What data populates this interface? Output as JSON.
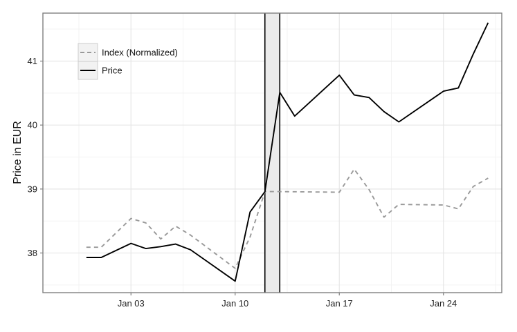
{
  "chart_data": {
    "type": "line",
    "title": "",
    "xlabel": "",
    "ylabel": "Price in EUR",
    "xlim": [
      "2015-12-29",
      "2016-01-27"
    ],
    "ylim": [
      37.38,
      41.75
    ],
    "x_ticks": [
      "2016-01-03",
      "2016-01-10",
      "2016-01-17",
      "2016-01-24"
    ],
    "x_tick_labels": [
      "Jan 03",
      "Jan 10",
      "Jan 17",
      "Jan 24"
    ],
    "y_ticks": [
      38,
      39,
      40,
      41
    ],
    "y_tick_labels": [
      "38",
      "39",
      "40",
      "41"
    ],
    "grid": true,
    "legend_position": "top-left",
    "highlight_band": {
      "from": "2016-01-12",
      "to": "2016-01-13"
    },
    "series": [
      {
        "name": "Index (Normalized)",
        "style": "dashed",
        "color": "#999999",
        "points": [
          [
            "2015-12-31",
            38.09
          ],
          [
            "2016-01-01",
            38.09
          ],
          [
            "2016-01-03",
            38.54
          ],
          [
            "2016-01-04",
            38.47
          ],
          [
            "2016-01-05",
            38.22
          ],
          [
            "2016-01-06",
            38.42
          ],
          [
            "2016-01-07",
            38.28
          ],
          [
            "2016-01-10",
            37.76
          ],
          [
            "2016-01-11",
            38.25
          ],
          [
            "2016-01-12",
            38.96
          ],
          [
            "2016-01-13",
            38.96
          ],
          [
            "2016-01-17",
            38.95
          ],
          [
            "2016-01-18",
            39.31
          ],
          [
            "2016-01-19",
            38.99
          ],
          [
            "2016-01-20",
            38.56
          ],
          [
            "2016-01-21",
            38.76
          ],
          [
            "2016-01-24",
            38.75
          ],
          [
            "2016-01-25",
            38.69
          ],
          [
            "2016-01-26",
            39.04
          ],
          [
            "2016-01-27",
            39.17
          ]
        ]
      },
      {
        "name": "Price",
        "style": "solid",
        "color": "#000000",
        "points": [
          [
            "2015-12-31",
            37.93
          ],
          [
            "2016-01-01",
            37.93
          ],
          [
            "2016-01-03",
            38.15
          ],
          [
            "2016-01-04",
            38.07
          ],
          [
            "2016-01-05",
            38.1
          ],
          [
            "2016-01-06",
            38.14
          ],
          [
            "2016-01-07",
            38.05
          ],
          [
            "2016-01-10",
            37.56
          ],
          [
            "2016-01-11",
            38.64
          ],
          [
            "2016-01-12",
            38.96
          ],
          [
            "2016-01-13",
            40.51
          ],
          [
            "2016-01-14",
            40.14
          ],
          [
            "2016-01-17",
            40.78
          ],
          [
            "2016-01-18",
            40.47
          ],
          [
            "2016-01-19",
            40.43
          ],
          [
            "2016-01-20",
            40.21
          ],
          [
            "2016-01-21",
            40.05
          ],
          [
            "2016-01-24",
            40.53
          ],
          [
            "2016-01-25",
            40.58
          ],
          [
            "2016-01-26",
            41.11
          ],
          [
            "2016-01-27",
            41.6
          ]
        ]
      }
    ]
  }
}
